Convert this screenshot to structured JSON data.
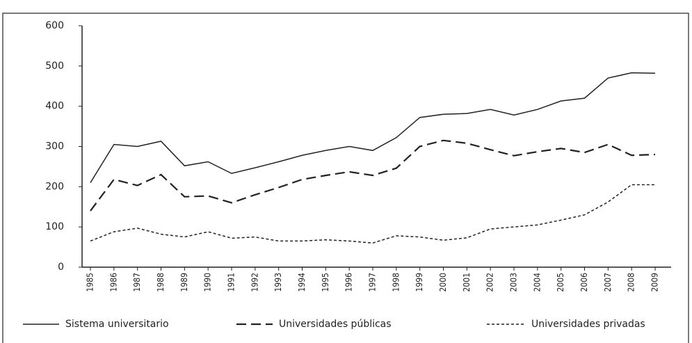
{
  "chart_data": {
    "type": "line",
    "x": [
      1985,
      1986,
      1987,
      1988,
      1989,
      1990,
      1991,
      1992,
      1993,
      1994,
      1995,
      1996,
      1997,
      1998,
      1999,
      2000,
      2001,
      2002,
      2003,
      2004,
      2005,
      2006,
      2007,
      2008,
      2009
    ],
    "series": [
      {
        "name": "Sistema universitario",
        "color": "#222222",
        "style": "solid",
        "values": [
          210,
          305,
          300,
          313,
          252,
          262,
          233,
          247,
          262,
          278,
          290,
          300,
          290,
          322,
          372,
          380,
          382,
          392,
          378,
          392,
          413,
          420,
          470,
          483,
          482
        ]
      },
      {
        "name": "Universidades públicas",
        "color": "#222222",
        "style": "dashed",
        "values": [
          140,
          218,
          203,
          230,
          175,
          177,
          160,
          180,
          198,
          218,
          228,
          237,
          228,
          246,
          300,
          315,
          308,
          292,
          277,
          287,
          295,
          285,
          305,
          278,
          280
        ]
      },
      {
        "name": "Universidades privadas",
        "color": "#222222",
        "style": "dotted",
        "values": [
          65,
          88,
          97,
          82,
          75,
          88,
          72,
          75,
          65,
          65,
          68,
          65,
          60,
          78,
          75,
          67,
          73,
          95,
          100,
          105,
          117,
          130,
          162,
          205,
          205
        ]
      }
    ],
    "xlim": [
      1985,
      2009
    ],
    "ylim": [
      0,
      600
    ],
    "yticks": [
      0,
      100,
      200,
      300,
      400,
      500,
      600
    ]
  }
}
